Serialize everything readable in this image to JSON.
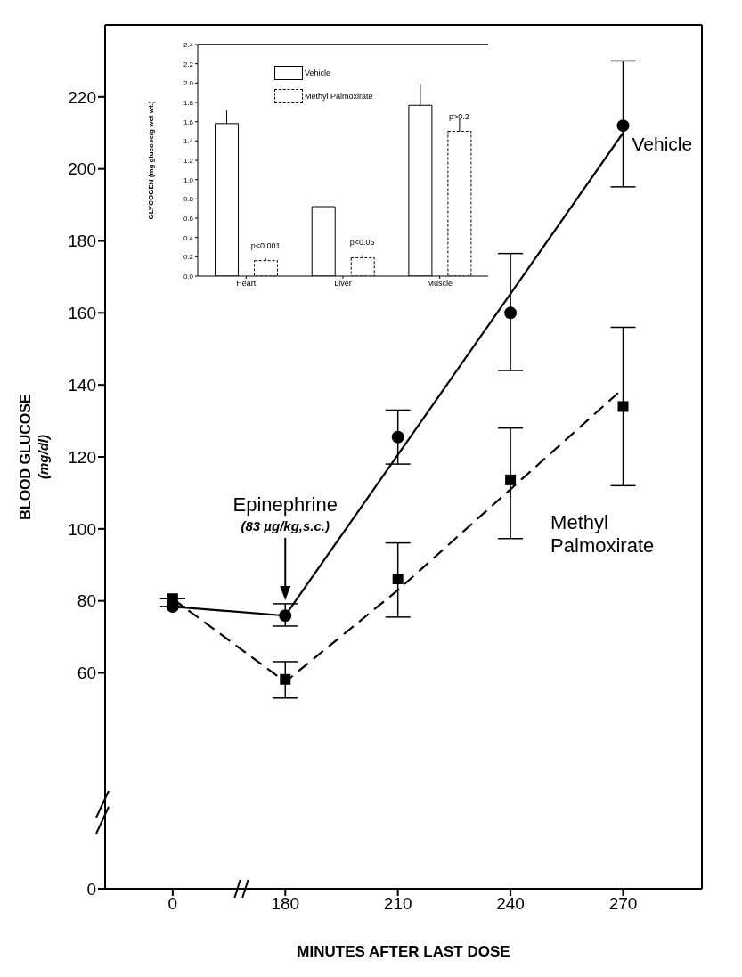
{
  "chart_data": [
    {
      "type": "scatter",
      "categories": [
        "0",
        "180",
        "210",
        "240",
        "270"
      ],
      "xlabel": "MINUTES AFTER LAST DOSE",
      "ylabel": "BLOOD GLUCOSE\n(mg/dl)",
      "ylim": [
        0,
        240
      ],
      "yticks": [
        0,
        60,
        80,
        100,
        120,
        140,
        160,
        180,
        200,
        220
      ],
      "grid": false,
      "legend": false,
      "series": [
        {
          "type": "line",
          "color": "#000000",
          "line_style": "solid",
          "marker": "none",
          "values": [
            78.4,
            75.9,
            120.6,
            165.3,
            210
          ]
        },
        {
          "type": "line",
          "color": "#000000",
          "line_style": "dashed",
          "marker": "none",
          "values": [
            80.6,
            57.5,
            83,
            111,
            139
          ]
        },
        {
          "type": "scatter",
          "name": "Vehicle",
          "color": "#000000",
          "marker": "circle",
          "values": [
            78.4,
            75.9,
            125.5,
            160,
            212
          ],
          "errors": [
            null,
            [
              73,
              79.2
            ],
            [
              118,
              133
            ],
            [
              144,
              176.5
            ],
            [
              195,
              230
            ]
          ]
        },
        {
          "type": "scatter",
          "name": "Methyl Palmoxirate",
          "color": "#000000",
          "marker": "square",
          "values": [
            80.6,
            58.2,
            86.1,
            113.6,
            134
          ],
          "errors": [
            null,
            [
              53,
              63.1
            ],
            [
              75.5,
              96.1
            ],
            [
              97.3,
              128
            ],
            [
              112,
              156
            ]
          ]
        }
      ],
      "annotations": [
        "Epinephrine\n(83 µg/kg,s.c.)"
      ]
    },
    {
      "type": "bar",
      "categories": [
        "Heart",
        "Liver",
        "Muscle"
      ],
      "ylabel": "GLYCOGEN (mg glucose/g wet wt.)",
      "ylim": [
        0,
        2.4
      ],
      "yticks": [
        {
          "value": 0,
          "label": "0.0"
        },
        0.2,
        0.4,
        0.6,
        0.8,
        {
          "value": 1,
          "label": "1.0"
        },
        1.2,
        1.4,
        1.6,
        1.8,
        {
          "value": 2,
          "label": "2.0"
        },
        2.2,
        2.4
      ],
      "grid": false,
      "legend": "top",
      "series": [
        {
          "name": "Vehicle",
          "color": "#ffffff",
          "line_style": "solid",
          "values": [
            1.58,
            0.72,
            1.77
          ],
          "errors": [
            [
              1.58,
              1.72
            ],
            null,
            [
              1.77,
              1.99
            ]
          ]
        },
        {
          "name": "Methyl Palmoxirate",
          "color": "#ffffff",
          "line_style": "dashed",
          "values": [
            0.16,
            0.19,
            1.5
          ],
          "errors": [
            [
              0.16,
              0.18
            ],
            [
              0.19,
              0.22
            ],
            [
              1.5,
              1.63
            ]
          ]
        }
      ],
      "annotations": [
        "p<0.001",
        "p<0.05",
        "p>0.2"
      ]
    }
  ]
}
